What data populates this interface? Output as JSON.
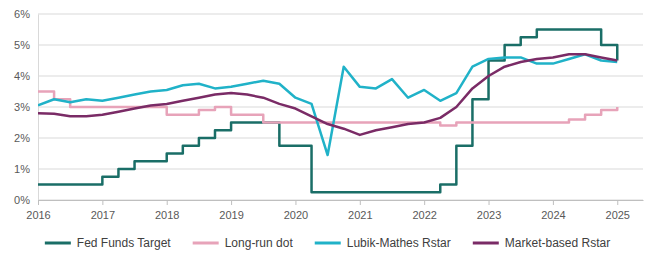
{
  "chart_data": {
    "type": "line",
    "x": [
      2016,
      2016.25,
      2016.5,
      2016.75,
      2017,
      2017.25,
      2017.5,
      2017.75,
      2018,
      2018.25,
      2018.5,
      2018.75,
      2019,
      2019.25,
      2019.5,
      2019.75,
      2020,
      2020.25,
      2020.5,
      2020.75,
      2021,
      2021.25,
      2021.5,
      2021.75,
      2022,
      2022.25,
      2022.5,
      2022.75,
      2023,
      2023.25,
      2023.5,
      2023.75,
      2024,
      2024.25,
      2024.5,
      2024.75,
      2025
    ],
    "series": [
      {
        "name": "Fed Funds Target",
        "color": "#1a6e67",
        "line_style": "step",
        "values": [
          0.5,
          0.5,
          0.5,
          0.5,
          0.75,
          1.0,
          1.25,
          1.25,
          1.5,
          1.75,
          2.0,
          2.25,
          2.5,
          2.5,
          2.5,
          1.75,
          1.75,
          0.25,
          0.25,
          0.25,
          0.25,
          0.25,
          0.25,
          0.25,
          0.25,
          0.5,
          1.75,
          3.25,
          4.5,
          5.0,
          5.25,
          5.5,
          5.5,
          5.5,
          5.5,
          5.0,
          4.5
        ]
      },
      {
        "name": "Long-run dot",
        "color": "#e7a3b9",
        "line_style": "step",
        "values": [
          3.5,
          3.25,
          3.0,
          3.0,
          3.0,
          3.0,
          3.0,
          3.0,
          2.75,
          2.75,
          2.9,
          3.0,
          2.75,
          2.75,
          2.5,
          2.5,
          2.5,
          2.5,
          2.5,
          2.5,
          2.5,
          2.5,
          2.5,
          2.5,
          2.5,
          2.4,
          2.5,
          2.5,
          2.5,
          2.5,
          2.5,
          2.5,
          2.5,
          2.6,
          2.75,
          2.9,
          3.0
        ]
      },
      {
        "name": "Lubik-Mathes Rstar",
        "color": "#20b2c8",
        "line_style": "solid",
        "values": [
          3.05,
          3.25,
          3.15,
          3.25,
          3.2,
          3.3,
          3.4,
          3.5,
          3.55,
          3.7,
          3.75,
          3.6,
          3.65,
          3.75,
          3.85,
          3.75,
          3.3,
          3.1,
          1.45,
          4.3,
          3.65,
          3.6,
          3.9,
          3.3,
          3.55,
          3.2,
          3.45,
          4.3,
          4.55,
          4.6,
          4.6,
          4.4,
          4.4,
          4.55,
          4.7,
          4.5,
          4.45
        ]
      },
      {
        "name": "Market-based Rstar",
        "color": "#7a2b66",
        "line_style": "solid",
        "values": [
          2.8,
          2.78,
          2.7,
          2.7,
          2.75,
          2.85,
          2.95,
          3.05,
          3.1,
          3.2,
          3.3,
          3.4,
          3.45,
          3.4,
          3.3,
          3.1,
          2.95,
          2.7,
          2.45,
          2.3,
          2.1,
          2.25,
          2.35,
          2.45,
          2.5,
          2.65,
          3.0,
          3.6,
          4.0,
          4.3,
          4.45,
          4.55,
          4.6,
          4.7,
          4.7,
          4.6,
          4.5
        ]
      }
    ],
    "xlim": [
      2016,
      2025.4
    ],
    "xticks": [
      2016,
      2017,
      2018,
      2019,
      2020,
      2021,
      2022,
      2023,
      2024,
      2025
    ],
    "ylim": [
      0,
      6
    ],
    "yticks": [
      {
        "value": 0,
        "label": "0%"
      },
      {
        "value": 1,
        "label": "1%"
      },
      {
        "value": 2,
        "label": "2%"
      },
      {
        "value": 3,
        "label": "3%"
      },
      {
        "value": 4,
        "label": "4%"
      },
      {
        "value": 5,
        "label": "5%"
      },
      {
        "value": 6,
        "label": "6%"
      }
    ],
    "grid": true,
    "legend": "bottom"
  }
}
